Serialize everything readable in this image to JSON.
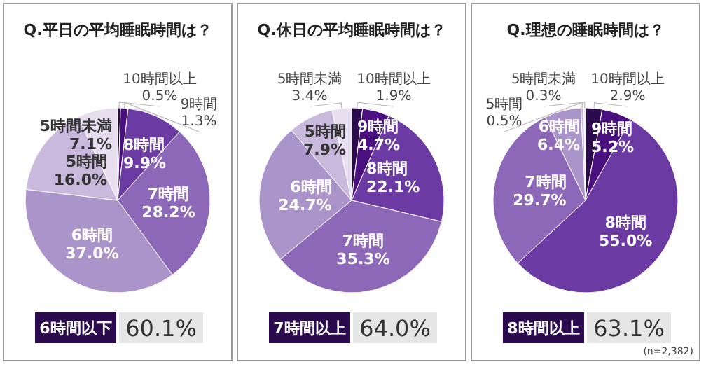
{
  "chart_data": [
    {
      "type": "pie",
      "title": "Q.平日の平均睡眠時間は？",
      "categories": [
        "10時間以上",
        "9時間",
        "8時間",
        "7時間",
        "6時間",
        "5時間",
        "5時間未満"
      ],
      "values": [
        0.5,
        1.3,
        9.9,
        28.2,
        37.0,
        16.0,
        7.1
      ],
      "value_labels": [
        "0.5%",
        "1.3%",
        "9.9%",
        "28.2%",
        "37.0%",
        "16.0%",
        "7.1%"
      ],
      "colors": [
        "#2b0b4d",
        "#4a1080",
        "#6b3aa2",
        "#8e68b8",
        "#ab94c9",
        "#c9badd",
        "#e7dff0"
      ],
      "annotations": [
        "6時間以下",
        "60.1%"
      ]
    },
    {
      "type": "pie",
      "title": "Q.休日の平均睡眠時間は？",
      "categories": [
        "10時間以上",
        "9時間",
        "8時間",
        "7時間",
        "6時間",
        "5時間",
        "5時間未満"
      ],
      "values": [
        1.9,
        4.7,
        22.1,
        35.3,
        24.7,
        7.9,
        3.4
      ],
      "value_labels": [
        "1.9%",
        "4.7%",
        "22.1%",
        "35.3%",
        "24.7%",
        "7.9%",
        "3.4%"
      ],
      "colors": [
        "#2b0b4d",
        "#4a1080",
        "#6b3aa2",
        "#8e68b8",
        "#ab94c9",
        "#c9badd",
        "#e7dff0"
      ],
      "annotations": [
        "7時間以上",
        "64.0%"
      ]
    },
    {
      "type": "pie",
      "title": "Q.理想の睡眠時間は？",
      "categories": [
        "10時間以上",
        "9時間",
        "8時間",
        "7時間",
        "6時間",
        "5時間",
        "5時間未満"
      ],
      "values": [
        2.9,
        5.2,
        55.0,
        29.7,
        6.4,
        0.5,
        0.3
      ],
      "value_labels": [
        "2.9%",
        "5.2%",
        "55.0%",
        "29.7%",
        "6.4%",
        "0.5%",
        "0.3%"
      ],
      "colors": [
        "#2b0b4d",
        "#4a1080",
        "#6b3aa2",
        "#8e68b8",
        "#ab94c9",
        "#c9badd",
        "#e7dff0"
      ],
      "annotations": [
        "8時間以上",
        "63.1%",
        "(n=2,382)"
      ]
    }
  ]
}
